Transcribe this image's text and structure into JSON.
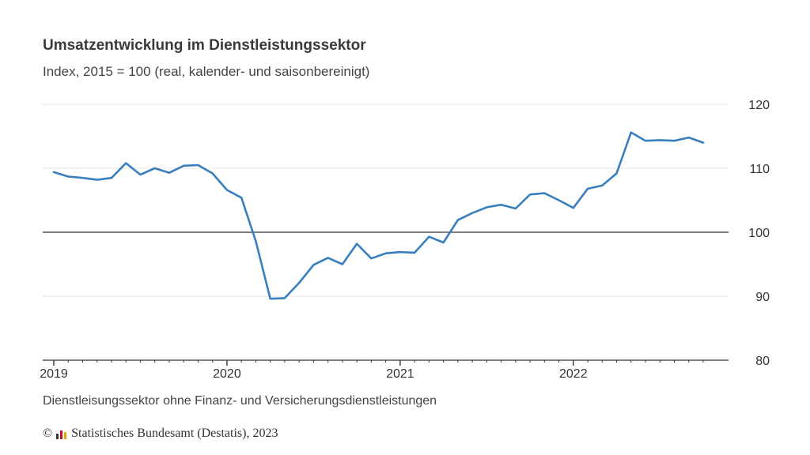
{
  "chart_data": {
    "type": "line",
    "title": "Umsatzentwicklung im Dienstleistungssektor",
    "subtitle": "Index, 2015 = 100 (real, kalender- und saisonbereinigt)",
    "xlabel": "",
    "ylabel": "",
    "ylim": [
      80,
      120
    ],
    "yticks": [
      80,
      90,
      100,
      110,
      120
    ],
    "xtick_labels": [
      "2019",
      "2020",
      "2021",
      "2022"
    ],
    "reference_line": 100,
    "grid": true,
    "line_color": "#3a7fbd",
    "x": [
      "2019-01",
      "2019-02",
      "2019-03",
      "2019-04",
      "2019-05",
      "2019-06",
      "2019-07",
      "2019-08",
      "2019-09",
      "2019-10",
      "2019-11",
      "2019-12",
      "2020-01",
      "2020-02",
      "2020-03",
      "2020-04",
      "2020-05",
      "2020-06",
      "2020-07",
      "2020-08",
      "2020-09",
      "2020-10",
      "2020-11",
      "2020-12",
      "2021-01",
      "2021-02",
      "2021-03",
      "2021-04",
      "2021-05",
      "2021-06",
      "2021-07",
      "2021-08",
      "2021-09",
      "2021-10",
      "2021-11",
      "2021-12",
      "2022-01",
      "2022-02",
      "2022-03",
      "2022-04",
      "2022-05",
      "2022-06",
      "2022-07",
      "2022-08",
      "2022-09",
      "2022-10"
    ],
    "series": [
      {
        "values": [
          109.4,
          108.7,
          108.5,
          108.2,
          108.5,
          110.8,
          109.0,
          110.0,
          109.3,
          110.4,
          110.5,
          109.2,
          106.6,
          105.4,
          98.6,
          89.6,
          89.7,
          92.1,
          94.9,
          96.0,
          95.0,
          98.2,
          95.9,
          96.7,
          96.9,
          96.8,
          99.3,
          98.4,
          101.9,
          103.0,
          103.9,
          104.3,
          103.7,
          105.9,
          106.1,
          105.0,
          103.8,
          106.8,
          107.3,
          109.2,
          115.6,
          114.3,
          114.4,
          114.3,
          114.8,
          114.0
        ]
      }
    ]
  },
  "footnote": "Dienstleisungssektor ohne Finanz- und Versicherungsdienstleistungen",
  "source": {
    "copyright_symbol": "©",
    "text": "Statistisches Bundesamt (Destatis), 2023",
    "logo_icon": "destatis-bar-logo-icon"
  }
}
